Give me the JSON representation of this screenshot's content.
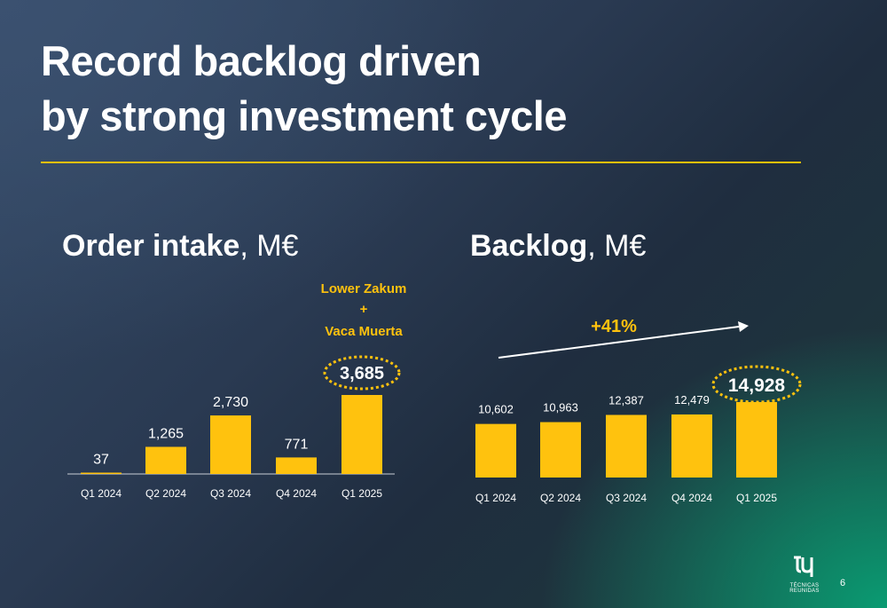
{
  "slide": {
    "title_line1": "Record backlog driven",
    "title_line2": "by strong investment cycle",
    "page_number": "6",
    "logo_text": "TÉCNICAS REUNIDAS"
  },
  "colors": {
    "accent": "#ffc20e",
    "rule": "#f2c000",
    "text": "#ffffff"
  },
  "chart_data": [
    {
      "type": "bar",
      "title": "Order intake",
      "unit": ", M€",
      "categories": [
        "Q1 2024",
        "Q2 2024",
        "Q3 2024",
        "Q4 2024",
        "Q1 2025"
      ],
      "values": [
        37,
        1265,
        2730,
        771,
        3685
      ],
      "value_labels": [
        "37",
        "1,265",
        "2,730",
        "771",
        "3,685"
      ],
      "highlight_index": 4,
      "annotation": [
        "Lower Zakum",
        "+",
        "Vaca Muerta"
      ],
      "ylim": [
        0,
        3685
      ]
    },
    {
      "type": "bar",
      "title": "Backlog",
      "unit": ", M€",
      "categories": [
        "Q1 2024",
        "Q2 2024",
        "Q3 2024",
        "Q4 2024",
        "Q1 2025"
      ],
      "values": [
        10602,
        10963,
        12387,
        12479,
        14928
      ],
      "value_labels": [
        "10,602",
        "10,963",
        "12,387",
        "12,479",
        "14,928"
      ],
      "highlight_index": 4,
      "growth_label": "+41%",
      "ylim": [
        0,
        14928
      ]
    }
  ]
}
